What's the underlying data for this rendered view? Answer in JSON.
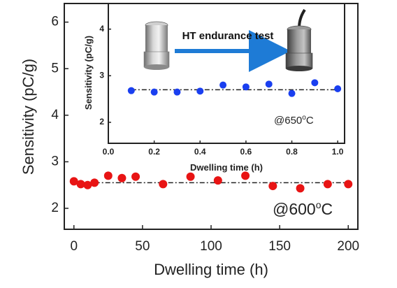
{
  "chart_data": [
    {
      "type": "scatter",
      "xlabel": "Dwelling time (h)",
      "ylabel": "Sensitivity (pC/g)",
      "xlim": [
        -7,
        207
      ],
      "ylim": [
        1.55,
        6.4
      ],
      "xticks": [
        "0",
        "50",
        "100",
        "150",
        "200"
      ],
      "yticks": [
        "2",
        "3",
        "4",
        "5",
        "6"
      ],
      "annotation": "@600",
      "annotation_sup": "o",
      "annotation_unit": "C",
      "series": [
        {
          "color": "#e81414",
          "x": [
            0,
            5,
            10,
            15,
            25,
            35,
            45,
            65,
            85,
            105,
            125,
            145,
            165,
            185,
            200
          ],
          "y": [
            2.58,
            2.52,
            2.5,
            2.55,
            2.7,
            2.65,
            2.68,
            2.52,
            2.68,
            2.6,
            2.7,
            2.48,
            2.43,
            2.52,
            2.52
          ]
        }
      ],
      "reference_line": {
        "y": 2.55,
        "style": "dash-dot",
        "color": "#222222"
      }
    },
    {
      "type": "scatter",
      "xlabel": "Dwelling time (h)",
      "ylabel": "Sensitivity (pC/g)",
      "xlim": [
        0,
        1.03
      ],
      "ylim": [
        1.55,
        4.55
      ],
      "xticks": [
        "0.0",
        "0.2",
        "0.4",
        "0.6",
        "0.8",
        "1.0"
      ],
      "yticks": [
        "2",
        "3",
        "4"
      ],
      "annotation": "@650",
      "annotation_sup": "o",
      "annotation_unit": "C",
      "arrow_label": "HT endurance test",
      "series": [
        {
          "color": "#1a3ff0",
          "x": [
            0.1,
            0.2,
            0.3,
            0.4,
            0.5,
            0.6,
            0.7,
            0.8,
            0.9,
            1.0
          ],
          "y": [
            2.68,
            2.65,
            2.65,
            2.67,
            2.8,
            2.76,
            2.82,
            2.62,
            2.85,
            2.72
          ]
        }
      ],
      "reference_line": {
        "y": 2.7,
        "style": "dash-dot",
        "color": "#222222"
      }
    }
  ]
}
